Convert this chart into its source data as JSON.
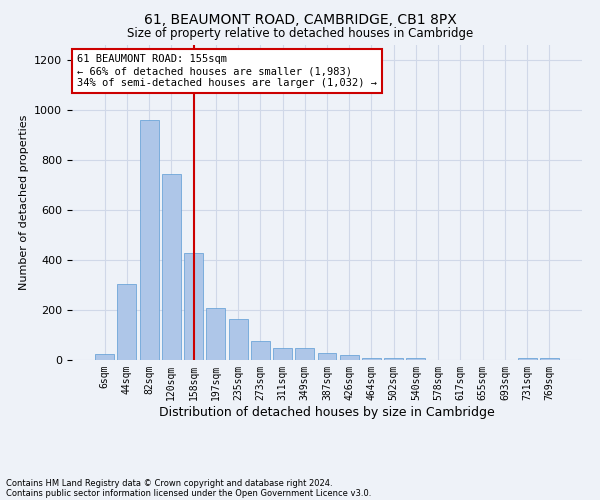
{
  "title1": "61, BEAUMONT ROAD, CAMBRIDGE, CB1 8PX",
  "title2": "Size of property relative to detached houses in Cambridge",
  "xlabel": "Distribution of detached houses by size in Cambridge",
  "ylabel": "Number of detached properties",
  "footnote1": "Contains HM Land Registry data © Crown copyright and database right 2024.",
  "footnote2": "Contains public sector information licensed under the Open Government Licence v3.0.",
  "bar_labels": [
    "6sqm",
    "44sqm",
    "82sqm",
    "120sqm",
    "158sqm",
    "197sqm",
    "235sqm",
    "273sqm",
    "311sqm",
    "349sqm",
    "387sqm",
    "426sqm",
    "464sqm",
    "502sqm",
    "540sqm",
    "578sqm",
    "617sqm",
    "655sqm",
    "693sqm",
    "731sqm",
    "769sqm"
  ],
  "bar_values": [
    25,
    305,
    960,
    745,
    430,
    210,
    165,
    75,
    50,
    50,
    30,
    20,
    10,
    10,
    10,
    0,
    0,
    0,
    0,
    10,
    10
  ],
  "bar_color": "#aec6e8",
  "bar_edge_color": "#5b9bd5",
  "red_line_index": 4,
  "annotation_text": "61 BEAUMONT ROAD: 155sqm\n← 66% of detached houses are smaller (1,983)\n34% of semi-detached houses are larger (1,032) →",
  "annotation_box_color": "#ffffff",
  "annotation_box_edge": "#cc0000",
  "red_line_color": "#cc0000",
  "ylim": [
    0,
    1260
  ],
  "yticks": [
    0,
    200,
    400,
    600,
    800,
    1000,
    1200
  ],
  "grid_color": "#d0d8e8",
  "bg_color": "#eef2f8",
  "bar_width": 0.85
}
